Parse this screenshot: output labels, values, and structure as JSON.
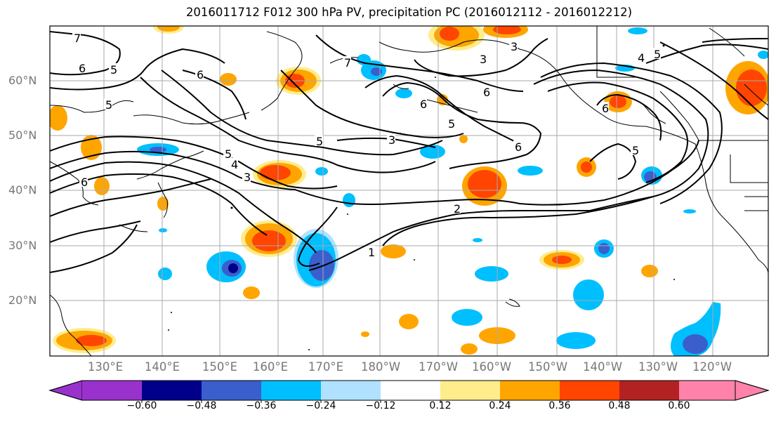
{
  "title": "2016011712 F012 300 hPa PV, precipitation PC (2016012112 - 2016012212)",
  "latitude_labels": [
    "60°N",
    "50°N",
    "40°N",
    "30°N",
    "20°N"
  ],
  "longitude_labels": [
    "130°E",
    "140°E",
    "150°E",
    "160°E",
    "170°E",
    "180°W",
    "170°W",
    "160°W",
    "150°W",
    "140°W",
    "130°W",
    "120°W"
  ],
  "contour_labels": [
    "7",
    "6",
    "5",
    "6",
    "6",
    "5",
    "4",
    "3",
    "3",
    "5",
    "2",
    "1",
    "7",
    "3",
    "6",
    "6",
    "5",
    "3",
    "6",
    "5",
    "4",
    "5",
    "6",
    "5"
  ],
  "colorbar": {
    "ticks": [
      "−0.60",
      "−0.48",
      "−0.36",
      "−0.24",
      "−0.12",
      "0.12",
      "0.24",
      "0.36",
      "0.48",
      "0.60"
    ],
    "colors": [
      "#9932cc",
      "#00008b",
      "#3a5fcd",
      "#00bfff",
      "#b0e2ff",
      "#ffffff",
      "#ffec8b",
      "#ffa500",
      "#ff4500",
      "#b22222",
      "#ff82ab"
    ]
  }
}
